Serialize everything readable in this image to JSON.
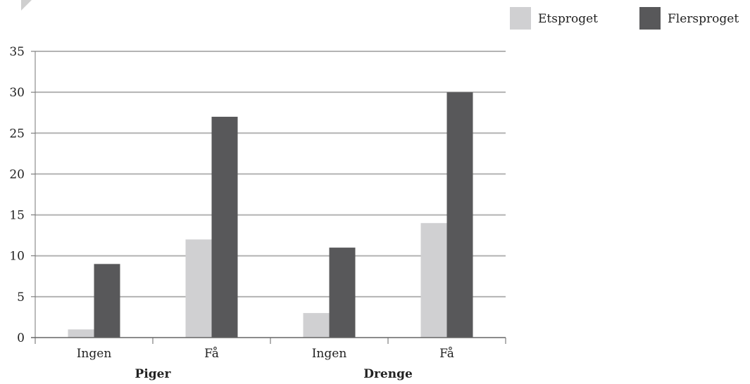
{
  "chart_data": {
    "type": "bar",
    "title": "",
    "xlabel": "",
    "ylabel": "",
    "ylim": [
      0,
      35
    ],
    "yticks": [
      0,
      5,
      10,
      15,
      20,
      25,
      30,
      35
    ],
    "grid": true,
    "legend_position": "top-right",
    "categories": [
      "Ingen",
      "Få",
      "Ingen",
      "Få"
    ],
    "groups": [
      {
        "label": "Piger",
        "categories": [
          "Ingen",
          "Få"
        ]
      },
      {
        "label": "Drenge",
        "categories": [
          "Ingen",
          "Få"
        ]
      }
    ],
    "series": [
      {
        "name": "Etsproget",
        "color": "#d0d0d2",
        "values": [
          1,
          12,
          3,
          14
        ]
      },
      {
        "name": "Flersproget",
        "color": "#58585a",
        "values": [
          9,
          27,
          11,
          30
        ]
      }
    ]
  }
}
